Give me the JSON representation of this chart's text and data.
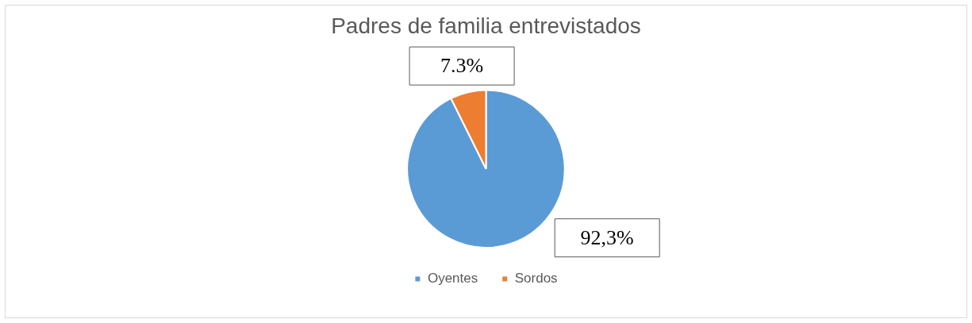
{
  "chart_data": {
    "type": "pie",
    "title": "Padres de familia entrevistados",
    "categories": [
      "Oyentes",
      "Sordos"
    ],
    "values": [
      92.3,
      7.3
    ],
    "colors": [
      "#5b9bd5",
      "#ed7d31"
    ],
    "value_labels": [
      "92,3%",
      "7.3%"
    ],
    "legend": "bottom"
  }
}
